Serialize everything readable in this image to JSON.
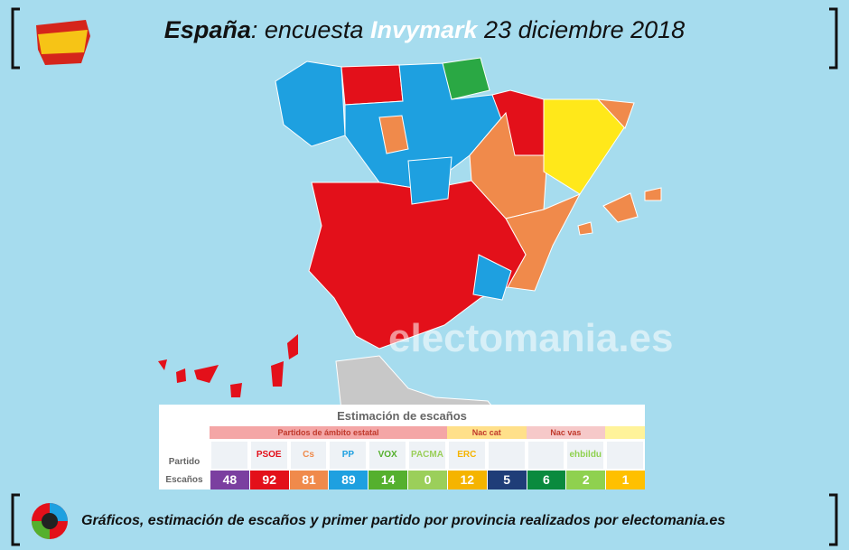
{
  "header": {
    "title_bold": "España",
    "title_mid": ": encuesta",
    "title_pollster": "Invymark",
    "title_date": "23 diciembre 2018"
  },
  "watermark": "electomania.es",
  "table": {
    "title": "Estimación de escaños",
    "row_party": "Partido",
    "row_seats": "Escaños",
    "groups": [
      {
        "label": "Partidos de ámbito estatal",
        "color": "#f4a6a6",
        "parties": [
          {
            "color": "#7b3fa0",
            "seats": 48
          },
          {
            "logo": "PSOE",
            "color": "#e3101a",
            "seats": 92
          },
          {
            "logo": "Cs",
            "color": "#f08a4b",
            "seats": 81
          },
          {
            "logo": "PP",
            "color": "#1ea0e0",
            "seats": 89
          },
          {
            "logo": "VOX",
            "color": "#55b02e",
            "seats": 14
          },
          {
            "logo": "PACMA",
            "color": "#9bcf5a",
            "seats": 0
          }
        ]
      },
      {
        "label": "Nac cat",
        "color": "#ffe08a",
        "parties": [
          {
            "logo": "ERC",
            "color": "#f5b400",
            "seats": 12
          },
          {
            "color": "#1f3d78",
            "seats": 5
          }
        ]
      },
      {
        "label": "Nac vas",
        "color": "#f6c9c9",
        "parties": [
          {
            "color": "#0a8a3e",
            "seats": 6
          },
          {
            "logo": "ehbildu",
            "color": "#8fd14f",
            "seats": 2
          }
        ]
      },
      {
        "color": "#fff39a",
        "parties": [
          {
            "color": "#ffc000",
            "seats": 1
          }
        ]
      }
    ]
  },
  "footer": "Gráficos, estimación de escaños y primer partido por provincia realizados por electomania.es"
}
